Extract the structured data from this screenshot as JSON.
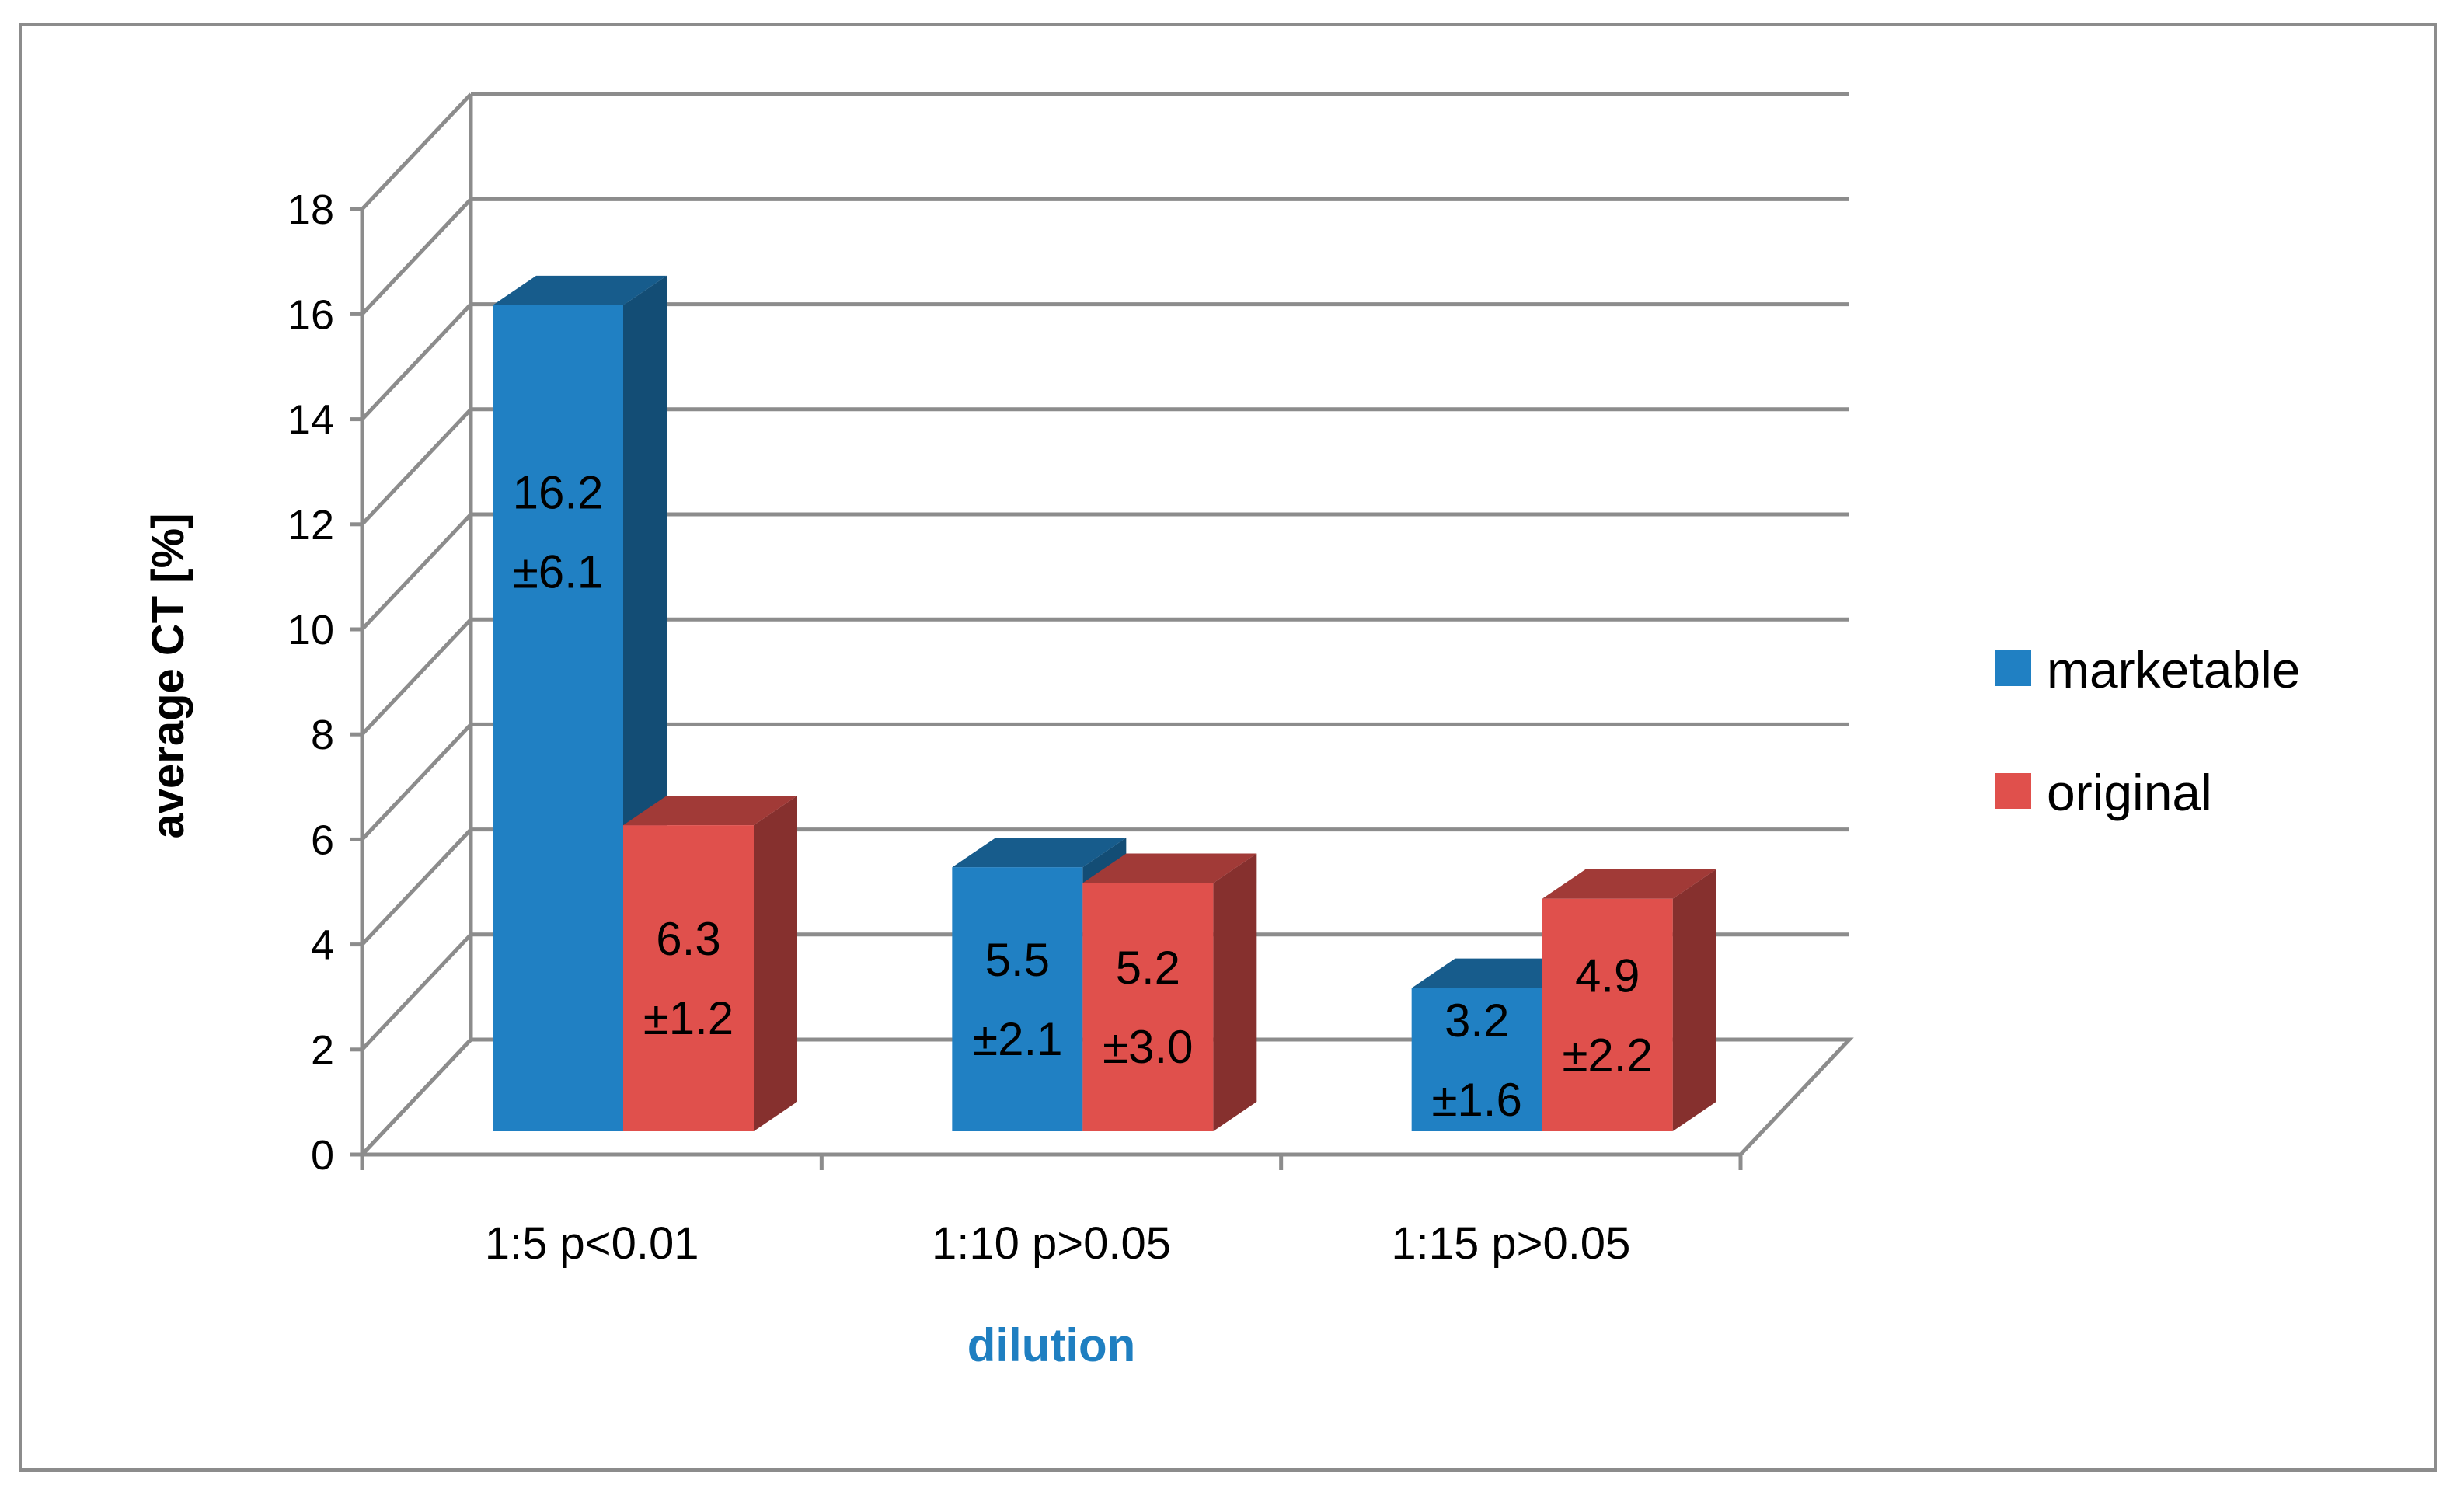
{
  "chart_data": {
    "type": "bar",
    "style": "3d-clustered-column",
    "categories": [
      "1:5 p<0.01",
      "1:10 p>0.05",
      "1:15 p>0.05"
    ],
    "series": [
      {
        "name": "marketable",
        "color": "#2080c3",
        "values": [
          16.2,
          5.5,
          3.2
        ],
        "labels": [
          [
            "16.2",
            "±6.1"
          ],
          [
            "5.5",
            "±2.1"
          ],
          [
            "3.2",
            "±1.6"
          ]
        ]
      },
      {
        "name": "original",
        "color": "#e0504c",
        "values": [
          6.3,
          5.2,
          4.9
        ],
        "labels": [
          [
            "6.3",
            "±1.2"
          ],
          [
            "5.2",
            "±3.0"
          ],
          [
            "4.9",
            "±2.2"
          ]
        ]
      }
    ],
    "xlabel": "dilution",
    "ylabel": "average CT [%]",
    "ylim": [
      0,
      18
    ],
    "yticks": [
      0,
      2,
      4,
      6,
      8,
      10,
      12,
      14,
      16,
      18
    ],
    "grid": true,
    "legend": "right"
  }
}
